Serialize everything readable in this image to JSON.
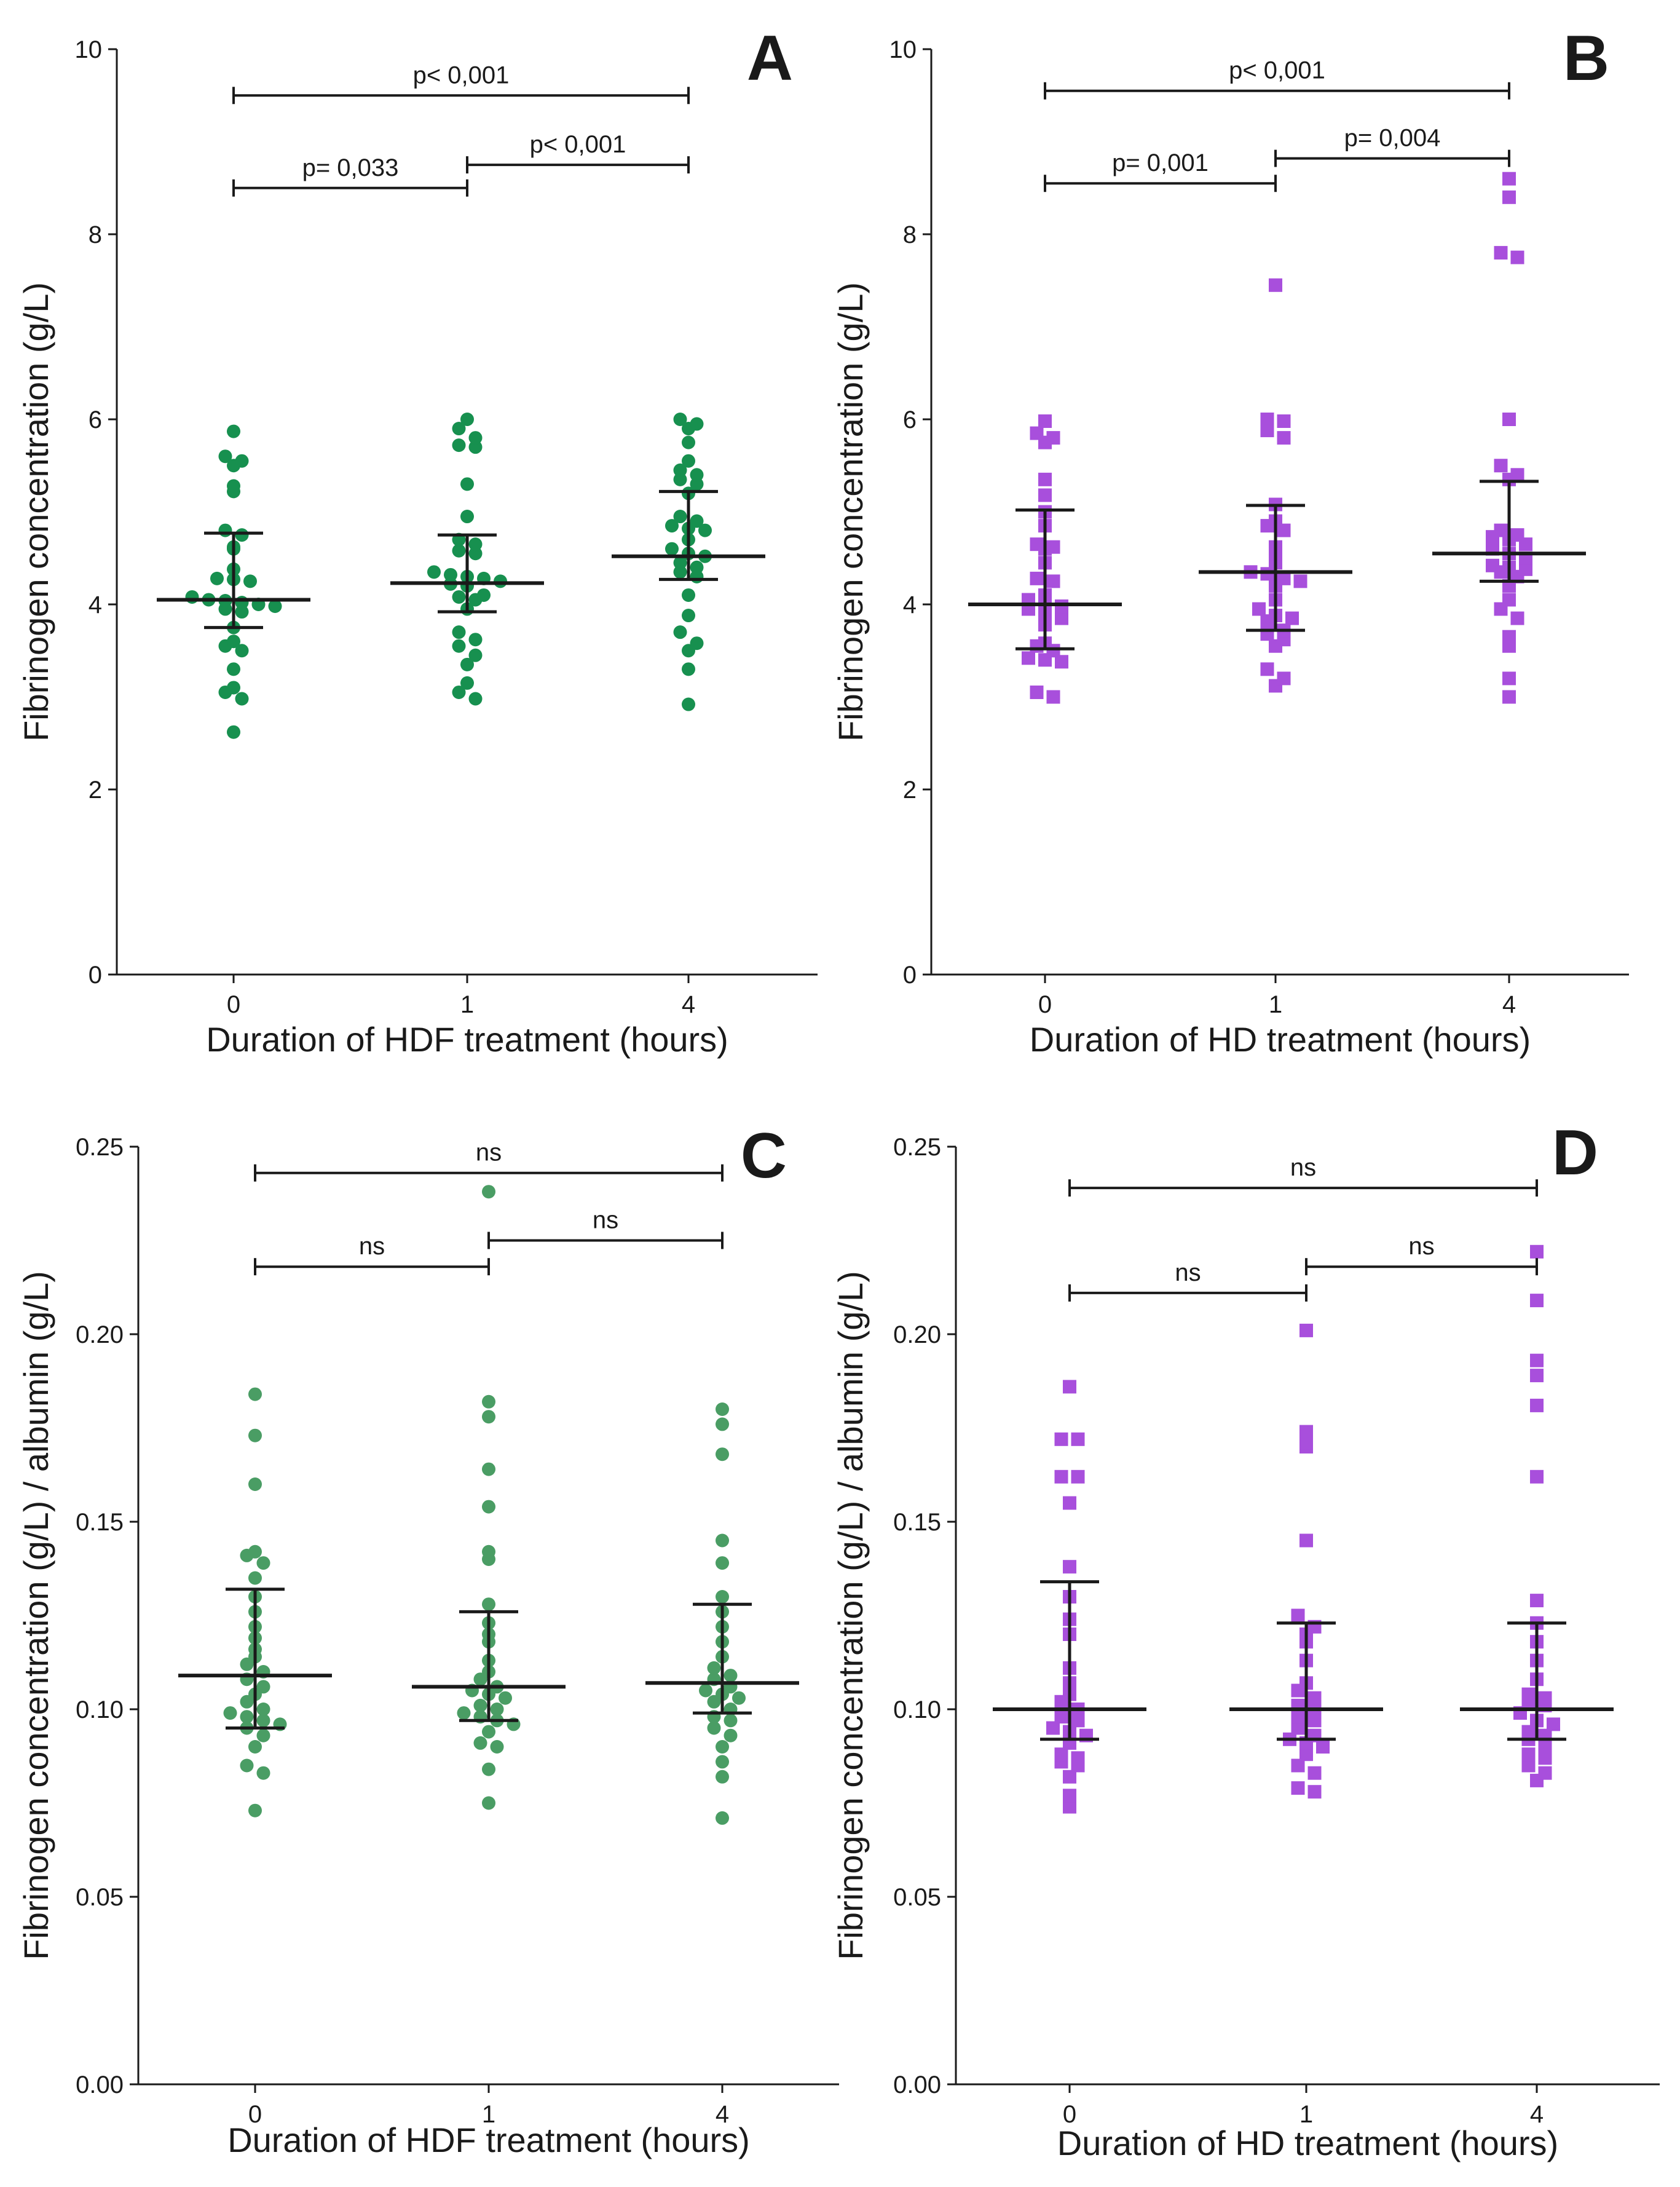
{
  "colors": {
    "hdf": "#17904f",
    "hdf_light": "#4a9d64",
    "hd": "#a84fdc",
    "ink": "#1a1a1a"
  },
  "chart_data": [
    {
      "panel": "A",
      "type": "scatter",
      "xlabel": "Duration of HDF treatment (hours)",
      "ylabel": "Fibrinogen concentration (g/L)",
      "categories": [
        "0",
        "1",
        "4"
      ],
      "ylim": [
        0,
        10
      ],
      "yticks": [
        0,
        2,
        4,
        6,
        8,
        10
      ],
      "ytick_labels": [
        "0",
        "2",
        "4",
        "6",
        "8",
        "10"
      ],
      "marker": "circle",
      "color": "#17904f",
      "groups": [
        {
          "category": "0",
          "median": 4.05,
          "q1": 3.75,
          "q3": 4.77,
          "values": [
            5.87,
            5.6,
            5.55,
            5.5,
            5.28,
            5.22,
            4.8,
            4.75,
            4.62,
            4.6,
            4.38,
            4.28,
            4.27,
            4.25,
            4.08,
            4.05,
            4.04,
            4.02,
            4.0,
            3.98,
            3.95,
            3.92,
            3.75,
            3.6,
            3.55,
            3.5,
            3.3,
            3.1,
            3.05,
            2.98,
            2.62
          ]
        },
        {
          "category": "1",
          "median": 4.23,
          "q1": 3.92,
          "q3": 4.75,
          "values": [
            6.0,
            5.9,
            5.8,
            5.72,
            5.7,
            5.3,
            4.95,
            4.7,
            4.65,
            4.58,
            4.55,
            4.35,
            4.32,
            4.3,
            4.28,
            4.25,
            4.22,
            4.2,
            4.1,
            4.08,
            4.05,
            3.95,
            3.7,
            3.62,
            3.55,
            3.45,
            3.35,
            3.15,
            3.05,
            2.98
          ]
        },
        {
          "category": "4",
          "median": 4.52,
          "q1": 4.27,
          "q3": 5.22,
          "values": [
            6.0,
            5.95,
            5.9,
            5.75,
            5.55,
            5.45,
            5.4,
            5.35,
            5.3,
            5.2,
            4.95,
            4.9,
            4.85,
            4.82,
            4.8,
            4.7,
            4.6,
            4.55,
            4.52,
            4.45,
            4.4,
            4.35,
            4.3,
            4.1,
            3.88,
            3.7,
            3.58,
            3.5,
            3.3,
            2.92
          ]
        }
      ],
      "comparisons": [
        {
          "from": "0",
          "to": "4",
          "y": 9.5,
          "label": "p< 0,001"
        },
        {
          "from": "0",
          "to": "1",
          "y": 8.5,
          "label": "p= 0,033"
        },
        {
          "from": "1",
          "to": "4",
          "y": 8.75,
          "label": "p< 0,001"
        }
      ]
    },
    {
      "panel": "B",
      "type": "scatter",
      "xlabel": "Duration of HD treatment (hours)",
      "ylabel": "Fibrinogen concentration (g/L)",
      "categories": [
        "0",
        "1",
        "4"
      ],
      "ylim": [
        0,
        10
      ],
      "yticks": [
        0,
        2,
        4,
        6,
        8,
        10
      ],
      "ytick_labels": [
        "0",
        "2",
        "4",
        "6",
        "8",
        "10"
      ],
      "marker": "square",
      "color": "#a84fdc",
      "groups": [
        {
          "category": "0",
          "median": 4.0,
          "q1": 3.52,
          "q3": 5.02,
          "values": [
            5.98,
            5.85,
            5.8,
            5.75,
            5.35,
            5.18,
            5.0,
            4.85,
            4.65,
            4.62,
            4.6,
            4.45,
            4.28,
            4.25,
            4.1,
            4.05,
            4.0,
            3.98,
            3.95,
            3.9,
            3.85,
            3.78,
            3.58,
            3.55,
            3.5,
            3.42,
            3.4,
            3.38,
            3.05,
            3.0
          ]
        },
        {
          "category": "1",
          "median": 4.35,
          "q1": 3.72,
          "q3": 5.07,
          "values": [
            7.45,
            6.0,
            5.98,
            5.88,
            5.8,
            5.08,
            4.9,
            4.85,
            4.8,
            4.62,
            4.55,
            4.45,
            4.35,
            4.33,
            4.28,
            4.25,
            4.2,
            4.05,
            3.95,
            3.88,
            3.85,
            3.82,
            3.72,
            3.68,
            3.62,
            3.55,
            3.3,
            3.2,
            3.12
          ]
        },
        {
          "category": "4",
          "median": 4.55,
          "q1": 4.25,
          "q3": 5.33,
          "values": [
            8.6,
            8.4,
            7.8,
            7.75,
            6.0,
            5.5,
            5.4,
            5.35,
            4.8,
            4.75,
            4.73,
            4.7,
            4.65,
            4.6,
            4.55,
            4.5,
            4.42,
            4.4,
            4.38,
            4.35,
            4.3,
            4.2,
            4.05,
            3.95,
            3.85,
            3.65,
            3.55,
            3.2,
            3.0
          ]
        }
      ],
      "comparisons": [
        {
          "from": "0",
          "to": "4",
          "y": 9.55,
          "label": "p< 0,001"
        },
        {
          "from": "0",
          "to": "1",
          "y": 8.55,
          "label": "p= 0,001"
        },
        {
          "from": "1",
          "to": "4",
          "y": 8.82,
          "label": "p= 0,004"
        }
      ]
    },
    {
      "panel": "C",
      "type": "scatter",
      "xlabel": "Duration of HDF treatment (hours)",
      "ylabel": "Fibrinogen concentration (g/L) / albumin (g/L)",
      "categories": [
        "0",
        "1",
        "4"
      ],
      "ylim": [
        0,
        0.25
      ],
      "yticks": [
        0,
        0.05,
        0.1,
        0.15,
        0.2,
        0.25
      ],
      "ytick_labels": [
        "0.00",
        "0.05",
        "0.10",
        "0.15",
        "0.20",
        "0.25"
      ],
      "marker": "circle",
      "color": "#4a9d64",
      "groups": [
        {
          "category": "0",
          "median": 0.109,
          "q1": 0.095,
          "q3": 0.132,
          "values": [
            0.184,
            0.173,
            0.16,
            0.142,
            0.141,
            0.139,
            0.135,
            0.13,
            0.126,
            0.122,
            0.119,
            0.116,
            0.114,
            0.112,
            0.11,
            0.108,
            0.106,
            0.104,
            0.102,
            0.1,
            0.099,
            0.098,
            0.097,
            0.096,
            0.095,
            0.093,
            0.09,
            0.085,
            0.083,
            0.073
          ]
        },
        {
          "category": "1",
          "median": 0.106,
          "q1": 0.097,
          "q3": 0.126,
          "values": [
            0.238,
            0.182,
            0.178,
            0.164,
            0.154,
            0.142,
            0.14,
            0.128,
            0.123,
            0.12,
            0.118,
            0.113,
            0.11,
            0.108,
            0.106,
            0.105,
            0.104,
            0.103,
            0.101,
            0.1,
            0.099,
            0.098,
            0.097,
            0.096,
            0.094,
            0.091,
            0.09,
            0.084,
            0.075
          ]
        },
        {
          "category": "4",
          "median": 0.107,
          "q1": 0.099,
          "q3": 0.128,
          "values": [
            0.18,
            0.176,
            0.168,
            0.145,
            0.139,
            0.13,
            0.126,
            0.122,
            0.118,
            0.114,
            0.111,
            0.109,
            0.108,
            0.106,
            0.105,
            0.104,
            0.103,
            0.102,
            0.1,
            0.098,
            0.097,
            0.095,
            0.093,
            0.09,
            0.086,
            0.082,
            0.071
          ]
        }
      ],
      "comparisons": [
        {
          "from": "0",
          "to": "4",
          "y": 0.243,
          "label": "ns"
        },
        {
          "from": "0",
          "to": "1",
          "y": 0.218,
          "label": "ns"
        },
        {
          "from": "1",
          "to": "4",
          "y": 0.225,
          "label": "ns"
        }
      ]
    },
    {
      "panel": "D",
      "type": "scatter",
      "xlabel": "Duration of HD treatment (hours)",
      "ylabel": "Fibrinogen concentration (g/L) / albumin (g/L)",
      "categories": [
        "0",
        "1",
        "4"
      ],
      "ylim": [
        0,
        0.25
      ],
      "yticks": [
        0,
        0.05,
        0.1,
        0.15,
        0.2,
        0.25
      ],
      "ytick_labels": [
        "0.00",
        "0.05",
        "0.10",
        "0.15",
        "0.20",
        "0.25"
      ],
      "marker": "square",
      "color": "#a84fdc",
      "groups": [
        {
          "category": "0",
          "median": 0.1,
          "q1": 0.092,
          "q3": 0.134,
          "values": [
            0.186,
            0.172,
            0.172,
            0.162,
            0.162,
            0.155,
            0.138,
            0.13,
            0.124,
            0.12,
            0.111,
            0.107,
            0.104,
            0.102,
            0.1,
            0.098,
            0.097,
            0.095,
            0.094,
            0.093,
            0.091,
            0.088,
            0.087,
            0.086,
            0.085,
            0.082,
            0.077,
            0.074
          ]
        },
        {
          "category": "1",
          "median": 0.1,
          "q1": 0.092,
          "q3": 0.123,
          "values": [
            0.201,
            0.174,
            0.171,
            0.17,
            0.145,
            0.125,
            0.122,
            0.12,
            0.118,
            0.113,
            0.107,
            0.105,
            0.103,
            0.101,
            0.1,
            0.098,
            0.097,
            0.095,
            0.093,
            0.092,
            0.091,
            0.09,
            0.088,
            0.085,
            0.083,
            0.079,
            0.078
          ]
        },
        {
          "category": "4",
          "median": 0.1,
          "q1": 0.092,
          "q3": 0.123,
          "values": [
            0.222,
            0.209,
            0.193,
            0.189,
            0.181,
            0.162,
            0.129,
            0.123,
            0.118,
            0.113,
            0.108,
            0.104,
            0.103,
            0.102,
            0.101,
            0.099,
            0.097,
            0.096,
            0.094,
            0.093,
            0.092,
            0.09,
            0.088,
            0.087,
            0.085,
            0.083,
            0.081
          ]
        }
      ],
      "comparisons": [
        {
          "from": "0",
          "to": "4",
          "y": 0.239,
          "label": "ns"
        },
        {
          "from": "0",
          "to": "1",
          "y": 0.211,
          "label": "ns"
        },
        {
          "from": "1",
          "to": "4",
          "y": 0.218,
          "label": "ns"
        }
      ]
    }
  ]
}
